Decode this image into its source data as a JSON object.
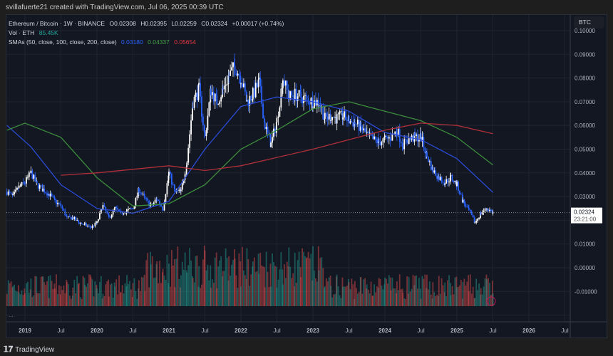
{
  "credit": "svillafuerte21 created with TradingView.com, Jul 06, 2025 00:39 UTC",
  "legend": {
    "symbol": "Ethereum / Bitcoin · 1W · BINANCE",
    "open": "O0.02308",
    "high": "H0.02395",
    "low": "L0.02259",
    "close": "C0.02324",
    "change": "+0.00017 (+0.74%)",
    "vol_label": "Vol · ETH",
    "vol_value": "85.45K",
    "sma_label": "SMAs (50, close, 100, close, 200, close)",
    "sma50": "0.03180",
    "sma100": "0.04337",
    "sma200": "0.05654"
  },
  "currency_button": "BTC",
  "price_label": {
    "price": "0.02324",
    "countdown": "23:21:00"
  },
  "colors": {
    "up": "#ffffff",
    "down": "#2962ff",
    "sma50": "#2a4bd7",
    "sma100": "#3c8d3c",
    "sma200": "#b0303a",
    "vol_up": "#26a69a",
    "vol_down": "#ef5350",
    "background": "#131722"
  },
  "footer": {
    "brand": "TradingView"
  },
  "more_indicator": "...",
  "chart_data": {
    "type": "candlestick",
    "interval": "1W",
    "ylim": [
      -0.015,
      0.105
    ],
    "yticks": [
      "0.10000",
      "0.09000",
      "0.08000",
      "0.07000",
      "0.06000",
      "0.05000",
      "0.04000",
      "0.03000",
      "0.01000",
      "0.00000",
      "-0.01000"
    ],
    "xticks": [
      "2019",
      "Jul",
      "2020",
      "Jul",
      "2021",
      "Jul",
      "2022",
      "Jul",
      "2023",
      "Jul",
      "2024",
      "Jul",
      "2025",
      "Jul",
      "2026",
      "Jul"
    ],
    "monthly_close": {
      "start": "2018-10",
      "values": [
        0.032,
        0.03,
        0.034,
        0.036,
        0.04,
        0.035,
        0.033,
        0.031,
        0.028,
        0.026,
        0.021,
        0.021,
        0.019,
        0.018,
        0.017,
        0.019,
        0.026,
        0.021,
        0.025,
        0.023,
        0.024,
        0.025,
        0.033,
        0.029,
        0.026,
        0.029,
        0.025,
        0.04,
        0.032,
        0.032,
        0.045,
        0.07,
        0.075,
        0.055,
        0.075,
        0.07,
        0.075,
        0.081,
        0.085,
        0.08,
        0.07,
        0.073,
        0.078,
        0.06,
        0.052,
        0.062,
        0.08,
        0.072,
        0.073,
        0.072,
        0.071,
        0.07,
        0.07,
        0.063,
        0.064,
        0.063,
        0.064,
        0.062,
        0.061,
        0.059,
        0.056,
        0.054,
        0.053,
        0.054,
        0.055,
        0.058,
        0.052,
        0.054,
        0.055,
        0.055,
        0.047,
        0.041,
        0.038,
        0.036,
        0.038,
        0.035,
        0.028,
        0.024,
        0.019,
        0.023,
        0.025,
        0.02324
      ]
    },
    "sma50": [
      [
        "2018-10",
        0.06
      ],
      [
        "2019-02",
        0.051
      ],
      [
        "2019-07",
        0.035
      ],
      [
        "2020-01",
        0.025
      ],
      [
        "2020-07",
        0.023
      ],
      [
        "2021-01",
        0.028
      ],
      [
        "2021-07",
        0.05
      ],
      [
        "2022-01",
        0.068
      ],
      [
        "2022-07",
        0.072
      ],
      [
        "2023-01",
        0.07
      ],
      [
        "2023-07",
        0.066
      ],
      [
        "2024-01",
        0.057
      ],
      [
        "2024-07",
        0.054
      ],
      [
        "2025-01",
        0.046
      ],
      [
        "2025-07",
        0.0318
      ]
    ],
    "sma100": [
      [
        "2018-10",
        0.058
      ],
      [
        "2019-01",
        0.061
      ],
      [
        "2019-07",
        0.055
      ],
      [
        "2020-01",
        0.038
      ],
      [
        "2020-07",
        0.026
      ],
      [
        "2021-01",
        0.027
      ],
      [
        "2021-07",
        0.035
      ],
      [
        "2022-01",
        0.05
      ],
      [
        "2022-07",
        0.058
      ],
      [
        "2023-01",
        0.067
      ],
      [
        "2023-07",
        0.07
      ],
      [
        "2024-01",
        0.066
      ],
      [
        "2024-07",
        0.062
      ],
      [
        "2025-01",
        0.055
      ],
      [
        "2025-07",
        0.04337
      ]
    ],
    "sma200": [
      [
        "2019-07",
        0.039
      ],
      [
        "2020-01",
        0.04
      ],
      [
        "2021-01",
        0.043
      ],
      [
        "2021-07",
        0.041
      ],
      [
        "2022-01",
        0.043
      ],
      [
        "2023-01",
        0.05
      ],
      [
        "2024-01",
        0.058
      ],
      [
        "2024-07",
        0.061
      ],
      [
        "2025-01",
        0.06
      ],
      [
        "2025-07",
        0.05654
      ]
    ],
    "last_price": 0.02324
  }
}
